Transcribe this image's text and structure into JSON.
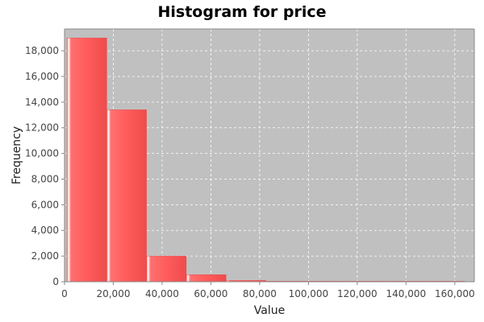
{
  "chart_data": {
    "type": "bar",
    "title": "Histogram for price",
    "xlabel": "Value",
    "ylabel": "Frequency",
    "bin_width": 16300,
    "bins": [
      {
        "start": 1000,
        "end": 17300,
        "count": 19000
      },
      {
        "start": 17300,
        "end": 33600,
        "count": 13400
      },
      {
        "start": 33600,
        "end": 49900,
        "count": 2000
      },
      {
        "start": 49900,
        "end": 66200,
        "count": 550
      },
      {
        "start": 66200,
        "end": 82500,
        "count": 100
      },
      {
        "start": 82500,
        "end": 98800,
        "count": 40
      },
      {
        "start": 98800,
        "end": 115100,
        "count": 20
      },
      {
        "start": 115100,
        "end": 131400,
        "count": 10
      },
      {
        "start": 131400,
        "end": 147700,
        "count": 6
      },
      {
        "start": 147700,
        "end": 164000,
        "count": 4
      }
    ],
    "xlim": [
      0,
      168000
    ],
    "ylim": [
      0,
      19700
    ],
    "x_ticks": [
      0,
      20000,
      40000,
      60000,
      80000,
      100000,
      120000,
      140000,
      160000
    ],
    "x_tick_labels": [
      "0",
      "20,000",
      "40,000",
      "60,000",
      "80,000",
      "100,000",
      "120,000",
      "140,000",
      "160,000"
    ],
    "y_ticks": [
      0,
      2000,
      4000,
      6000,
      8000,
      10000,
      12000,
      14000,
      16000,
      18000
    ],
    "y_tick_labels": [
      "0",
      "2,000",
      "4,000",
      "6,000",
      "8,000",
      "10,000",
      "12,000",
      "14,000",
      "16,000",
      "18,000"
    ],
    "grid": true,
    "legend": "none",
    "colors": {
      "bar": "#ff5a5a",
      "bar_dark": "#e84848",
      "bar_highlight": "#ffffff",
      "plot_background": "#c0c0c0",
      "gridline": "#ffffff",
      "axis": "#888888"
    }
  }
}
